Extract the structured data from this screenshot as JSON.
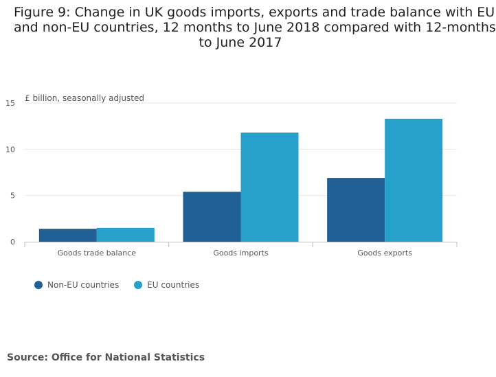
{
  "title_lines": [
    "Figure 9: Change in UK goods imports, exports and trade balance with EU",
    "and non-EU countries, 12 months to June 2018 compared with 12-months",
    "to June 2017"
  ],
  "source": "Source: Office for National Statistics",
  "chart_data": {
    "type": "bar",
    "title": "Figure 9: Change in UK goods imports, exports and trade balance with EU and non-EU countries, 12 months to June 2018 compared with 12-months to June 2017",
    "ylabel": "£ billion, seasonally adjusted",
    "xlabel": "",
    "categories": [
      "Goods trade balance",
      "Goods imports",
      "Goods exports"
    ],
    "series": [
      {
        "name": "Non-EU countries",
        "color": "#206095",
        "values": [
          1.4,
          5.4,
          6.9
        ]
      },
      {
        "name": "EU countries",
        "color": "#27a0cc",
        "values": [
          1.5,
          11.8,
          13.3
        ]
      }
    ],
    "yticks": [
      0,
      5,
      10,
      15
    ],
    "ylim": [
      0,
      15
    ],
    "grid": true,
    "legend": "bottom-left"
  }
}
